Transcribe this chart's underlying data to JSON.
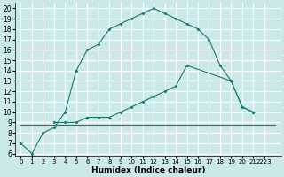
{
  "xlabel": "Humidex (Indice chaleur)",
  "background_color": "#cce9ea",
  "grid_color": "#ffffff",
  "line_color": "#1a7a6e",
  "xlim": [
    -0.5,
    23.5
  ],
  "ylim": [
    5.8,
    20.5
  ],
  "xtick_labels": [
    "0",
    "1",
    "2",
    "3",
    "4",
    "5",
    "6",
    "7",
    "8",
    "9",
    "10",
    "11",
    "12",
    "13",
    "14",
    "15",
    "16",
    "17",
    "18",
    "19",
    "20",
    "21",
    "2223"
  ],
  "ytick_vals": [
    6,
    7,
    8,
    9,
    10,
    11,
    12,
    13,
    14,
    15,
    16,
    17,
    18,
    19,
    20
  ],
  "series1_x": [
    0,
    1,
    2,
    3,
    4,
    5,
    6,
    7,
    8,
    9,
    10,
    11,
    12,
    13,
    14,
    15,
    16,
    17,
    18,
    19,
    20,
    21
  ],
  "series1_y": [
    7.0,
    6.0,
    8.0,
    8.5,
    10.0,
    14.0,
    16.0,
    16.5,
    18.0,
    18.5,
    19.0,
    19.5,
    20.0,
    19.5,
    19.0,
    18.5,
    18.0,
    17.0,
    14.5,
    13.0,
    10.5,
    10.0
  ],
  "series2_x": [
    3,
    4,
    5,
    6,
    7,
    8,
    9,
    10,
    11,
    12,
    13,
    14,
    15,
    19,
    20,
    21
  ],
  "series2_y": [
    9.0,
    9.0,
    9.0,
    9.5,
    9.5,
    9.5,
    10.0,
    10.5,
    11.0,
    11.5,
    12.0,
    12.5,
    14.5,
    13.0,
    10.5,
    10.0
  ],
  "series3_x": [
    0,
    23
  ],
  "series3_y": [
    8.8,
    8.8
  ],
  "series4_x": [
    3,
    23
  ],
  "series4_y": [
    9.0,
    8.8
  ]
}
